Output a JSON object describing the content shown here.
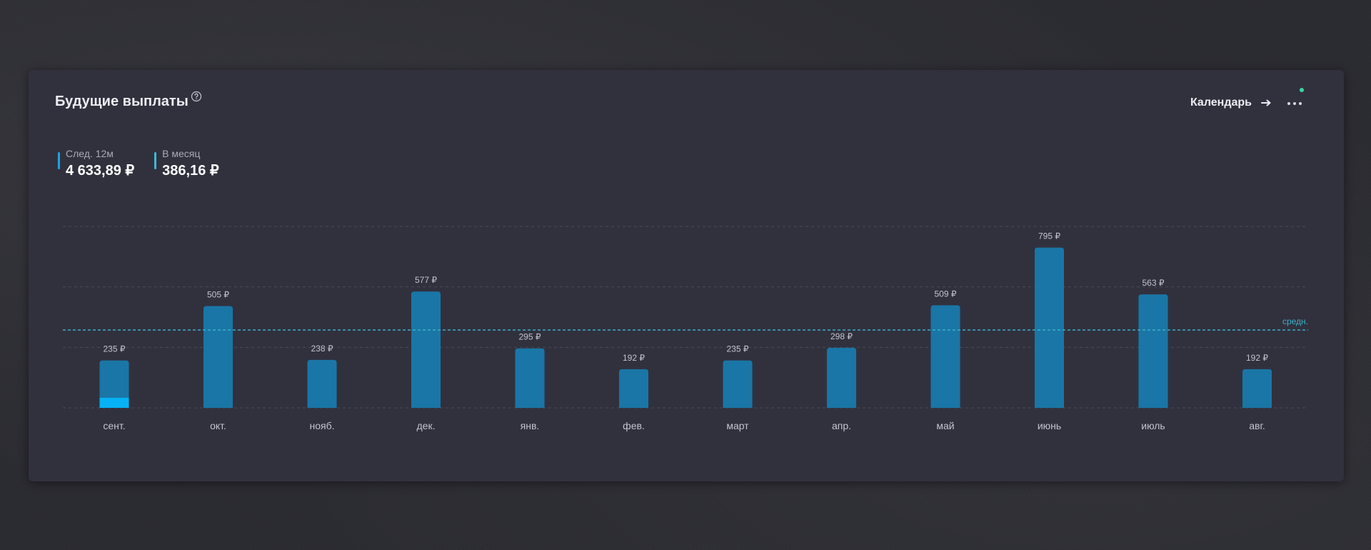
{
  "card": {
    "title": "Будущие выплаты",
    "help_icon": "question-circle-icon",
    "calendar_label": "Календарь",
    "calendar_icon": "arrow-right-icon",
    "more_icon": "more-dots-icon",
    "notification_color": "#35d8a0"
  },
  "stats": [
    {
      "label": "След. 12м",
      "value": "4 633,89 ₽",
      "marker_color": "#1ea2e4"
    },
    {
      "label": "В месяц",
      "value": "386,16 ₽",
      "marker_color": "#3fb8d4"
    }
  ],
  "chart_data": {
    "type": "bar",
    "categories": [
      "сент.",
      "окт.",
      "нояб.",
      "дек.",
      "янв.",
      "фев.",
      "март",
      "апр.",
      "май",
      "июнь",
      "июль",
      "авг."
    ],
    "values": [
      235,
      505,
      238,
      577,
      295,
      192,
      235,
      298,
      509,
      795,
      563,
      192
    ],
    "value_labels": [
      "235 ₽",
      "505 ₽",
      "238 ₽",
      "577 ₽",
      "295 ₽",
      "192 ₽",
      "235 ₽",
      "298 ₽",
      "509 ₽",
      "795 ₽",
      "563 ₽",
      "192 ₽"
    ],
    "received": [
      50,
      0,
      0,
      0,
      0,
      0,
      0,
      0,
      0,
      0,
      0,
      0
    ],
    "average": 386.16,
    "average_label": "средн.",
    "ylim": [
      0,
      900
    ],
    "gridlines": [
      0,
      300,
      600,
      900
    ],
    "grid": true,
    "colors": {
      "bar": "#1a76a6",
      "received": "#06b2f5",
      "average_line": "#3ab0c8",
      "grid": "#4a4a58",
      "text": "#c4c4d0"
    }
  }
}
